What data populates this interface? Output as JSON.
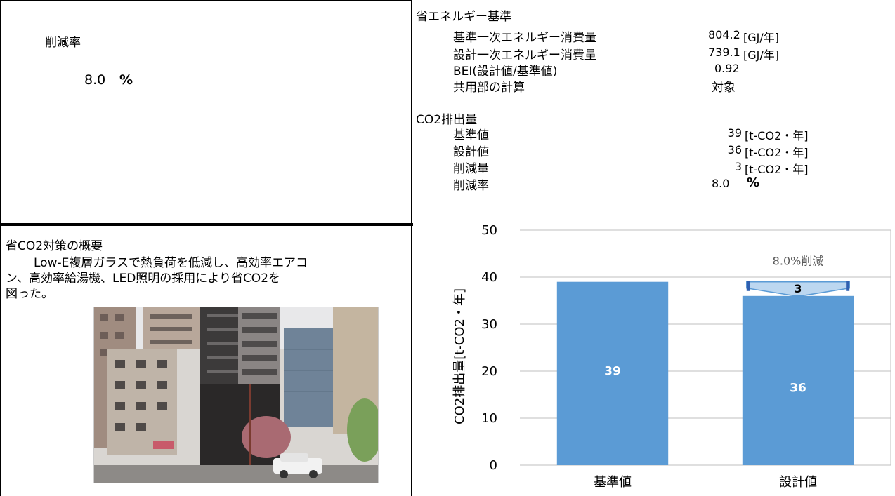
{
  "left_top": {
    "reduction_label": "削減率",
    "reduction_value": "8.0",
    "reduction_unit": "%"
  },
  "energy": {
    "header": "省エネルギー基準",
    "rows": [
      {
        "label": "基準一次エネルギー消費量",
        "value": "804.2",
        "unit": "[GJ/年]"
      },
      {
        "label": "設計一次エネルギー消費量",
        "value": "739.1",
        "unit": "[GJ/年]"
      },
      {
        "label": "BEI(設計値/基準値)",
        "value": "0.92",
        "unit": ""
      },
      {
        "label": "共用部の計算",
        "value": "対象",
        "unit": ""
      }
    ]
  },
  "co2": {
    "header": "CO2排出量",
    "rows": [
      {
        "label": "基準値",
        "value": "39",
        "unit": "[t-CO2・年]"
      },
      {
        "label": "設計値",
        "value": "36",
        "unit": "[t-CO2・年]"
      },
      {
        "label": "削減量",
        "value": "3",
        "unit": "[t-CO2・年]"
      },
      {
        "label": "削減率",
        "value": "8.0",
        "unit": "%"
      }
    ]
  },
  "measures": {
    "header": "省CO2対策の概要",
    "lines": [
      "Low-E複層ガラスで熱負荷を低減し、高効率エアコ",
      "ン、高効率給湯機、LED照明の採用により省CO2を",
      "図った。"
    ]
  },
  "chart_data": {
    "type": "bar",
    "categories": [
      "基準値",
      "設計値"
    ],
    "values": [
      39,
      36
    ],
    "value_labels": [
      "39",
      "36"
    ],
    "ylabel": "CO2排出量[t-CO2・年]",
    "ylim": [
      0,
      50
    ],
    "yticks": [
      "0",
      "10",
      "20",
      "30",
      "40",
      "50"
    ],
    "grid": true,
    "bar_color": "#5b9bd5",
    "annotations": {
      "reduction_text": "8.0%削減",
      "reduction_amount": "3"
    }
  }
}
